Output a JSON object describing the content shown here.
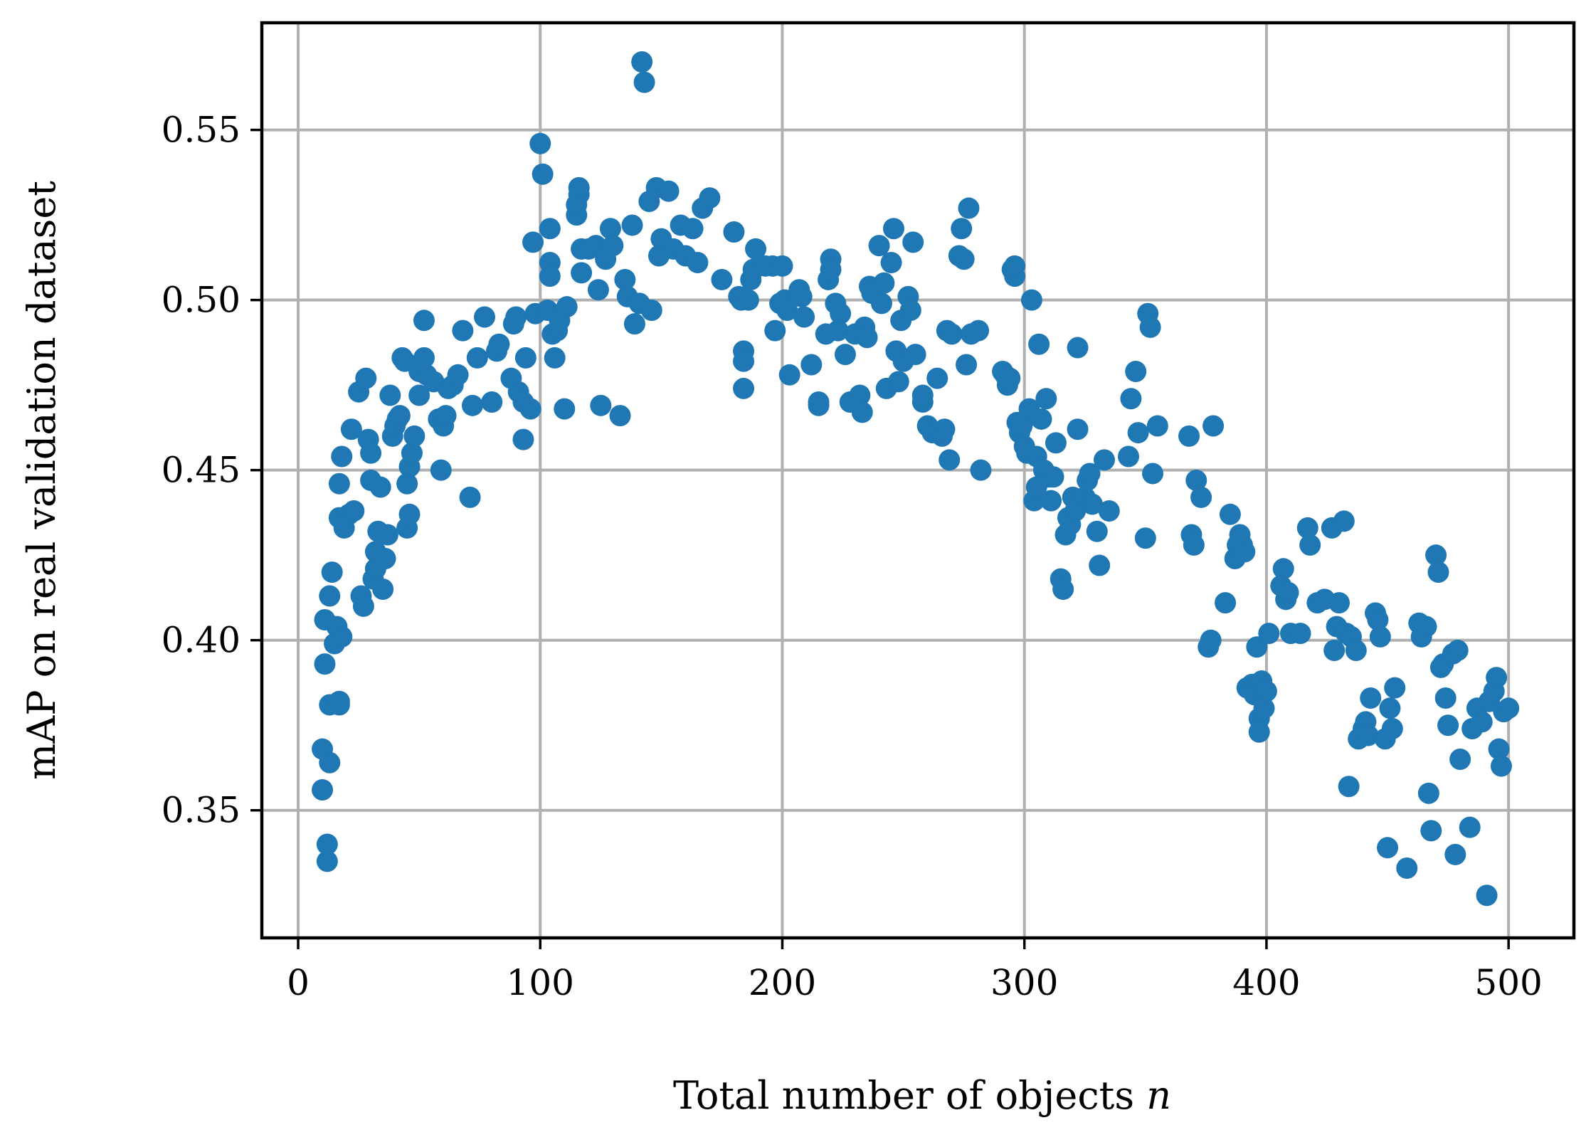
{
  "chart_data": {
    "type": "scatter",
    "title": "",
    "xlabel": "Total number of objects",
    "xlabel_var": "n",
    "ylabel": "mAP on real validation dataset",
    "xlim": [
      -15,
      527
    ],
    "ylim": [
      0.3125,
      0.5815
    ],
    "xticks": [
      0,
      100,
      200,
      300,
      400,
      500
    ],
    "xtick_labels": [
      "0",
      "100",
      "200",
      "300",
      "400",
      "500"
    ],
    "yticks": [
      0.35,
      0.4,
      0.45,
      0.5,
      0.55
    ],
    "ytick_labels": [
      "0.35",
      "0.40",
      "0.45",
      "0.50",
      "0.55"
    ],
    "grid": true,
    "color": "#1f77b4",
    "points": [
      [
        10,
        0.356
      ],
      [
        10,
        0.368
      ],
      [
        11,
        0.393
      ],
      [
        11,
        0.406
      ],
      [
        12,
        0.335
      ],
      [
        12,
        0.34
      ],
      [
        13,
        0.364
      ],
      [
        13,
        0.381
      ],
      [
        13,
        0.413
      ],
      [
        14,
        0.42
      ],
      [
        15,
        0.399
      ],
      [
        16,
        0.404
      ],
      [
        17,
        0.381
      ],
      [
        17,
        0.382
      ],
      [
        18,
        0.401
      ],
      [
        17,
        0.436
      ],
      [
        17,
        0.446
      ],
      [
        18,
        0.454
      ],
      [
        19,
        0.433
      ],
      [
        21,
        0.437
      ],
      [
        22,
        0.462
      ],
      [
        23,
        0.438
      ],
      [
        25,
        0.473
      ],
      [
        26,
        0.413
      ],
      [
        27,
        0.41
      ],
      [
        28,
        0.477
      ],
      [
        29,
        0.459
      ],
      [
        30,
        0.455
      ],
      [
        30,
        0.447
      ],
      [
        31,
        0.418
      ],
      [
        32,
        0.421
      ],
      [
        32,
        0.426
      ],
      [
        33,
        0.432
      ],
      [
        34,
        0.445
      ],
      [
        35,
        0.415
      ],
      [
        36,
        0.424
      ],
      [
        37,
        0.431
      ],
      [
        38,
        0.472
      ],
      [
        39,
        0.46
      ],
      [
        40,
        0.463
      ],
      [
        41,
        0.465
      ],
      [
        42,
        0.466
      ],
      [
        43,
        0.483
      ],
      [
        44,
        0.482
      ],
      [
        45,
        0.446
      ],
      [
        45,
        0.433
      ],
      [
        46,
        0.437
      ],
      [
        46,
        0.451
      ],
      [
        47,
        0.455
      ],
      [
        48,
        0.46
      ],
      [
        50,
        0.472
      ],
      [
        50,
        0.479
      ],
      [
        52,
        0.483
      ],
      [
        52,
        0.494
      ],
      [
        53,
        0.478
      ],
      [
        56,
        0.476
      ],
      [
        58,
        0.465
      ],
      [
        59,
        0.45
      ],
      [
        60,
        0.463
      ],
      [
        61,
        0.466
      ],
      [
        62,
        0.474
      ],
      [
        64,
        0.475
      ],
      [
        66,
        0.478
      ],
      [
        68,
        0.491
      ],
      [
        71,
        0.442
      ],
      [
        72,
        0.469
      ],
      [
        74,
        0.483
      ],
      [
        77,
        0.495
      ],
      [
        80,
        0.47
      ],
      [
        82,
        0.485
      ],
      [
        83,
        0.487
      ],
      [
        88,
        0.477
      ],
      [
        89,
        0.493
      ],
      [
        90,
        0.495
      ],
      [
        91,
        0.473
      ],
      [
        93,
        0.47
      ],
      [
        93,
        0.459
      ],
      [
        94,
        0.483
      ],
      [
        96,
        0.468
      ],
      [
        97,
        0.517
      ],
      [
        98,
        0.496
      ],
      [
        100,
        0.546
      ],
      [
        101,
        0.537
      ],
      [
        103,
        0.497
      ],
      [
        104,
        0.521
      ],
      [
        104,
        0.511
      ],
      [
        104,
        0.507
      ],
      [
        105,
        0.49
      ],
      [
        106,
        0.483
      ],
      [
        107,
        0.491
      ],
      [
        108,
        0.494
      ],
      [
        110,
        0.468
      ],
      [
        111,
        0.498
      ],
      [
        115,
        0.525
      ],
      [
        115,
        0.528
      ],
      [
        116,
        0.531
      ],
      [
        116,
        0.533
      ],
      [
        117,
        0.515
      ],
      [
        117,
        0.508
      ],
      [
        120,
        0.515
      ],
      [
        123,
        0.516
      ],
      [
        124,
        0.503
      ],
      [
        125,
        0.469
      ],
      [
        127,
        0.512
      ],
      [
        127,
        0.514
      ],
      [
        129,
        0.521
      ],
      [
        130,
        0.516
      ],
      [
        133,
        0.466
      ],
      [
        135,
        0.506
      ],
      [
        136,
        0.501
      ],
      [
        138,
        0.522
      ],
      [
        139,
        0.493
      ],
      [
        141,
        0.499
      ],
      [
        142,
        0.57
      ],
      [
        143,
        0.564
      ],
      [
        145,
        0.529
      ],
      [
        146,
        0.497
      ],
      [
        148,
        0.533
      ],
      [
        149,
        0.513
      ],
      [
        150,
        0.518
      ],
      [
        153,
        0.532
      ],
      [
        155,
        0.515
      ],
      [
        158,
        0.522
      ],
      [
        160,
        0.513
      ],
      [
        163,
        0.521
      ],
      [
        165,
        0.511
      ],
      [
        167,
        0.527
      ],
      [
        170,
        0.53
      ],
      [
        175,
        0.506
      ],
      [
        180,
        0.52
      ],
      [
        182,
        0.501
      ],
      [
        183,
        0.5
      ],
      [
        184,
        0.485
      ],
      [
        184,
        0.474
      ],
      [
        184,
        0.482
      ],
      [
        186,
        0.5
      ],
      [
        187,
        0.506
      ],
      [
        188,
        0.509
      ],
      [
        189,
        0.515
      ],
      [
        193,
        0.51
      ],
      [
        196,
        0.51
      ],
      [
        197,
        0.491
      ],
      [
        199,
        0.499
      ],
      [
        200,
        0.51
      ],
      [
        201,
        0.5
      ],
      [
        202,
        0.497
      ],
      [
        203,
        0.478
      ],
      [
        207,
        0.503
      ],
      [
        208,
        0.501
      ],
      [
        209,
        0.495
      ],
      [
        212,
        0.481
      ],
      [
        215,
        0.47
      ],
      [
        215,
        0.469
      ],
      [
        218,
        0.49
      ],
      [
        219,
        0.506
      ],
      [
        220,
        0.512
      ],
      [
        220,
        0.509
      ],
      [
        222,
        0.499
      ],
      [
        223,
        0.491
      ],
      [
        224,
        0.496
      ],
      [
        226,
        0.484
      ],
      [
        228,
        0.47
      ],
      [
        229,
        0.47
      ],
      [
        230,
        0.49
      ],
      [
        232,
        0.472
      ],
      [
        233,
        0.467
      ],
      [
        234,
        0.492
      ],
      [
        235,
        0.489
      ],
      [
        236,
        0.504
      ],
      [
        237,
        0.502
      ],
      [
        240,
        0.516
      ],
      [
        241,
        0.499
      ],
      [
        242,
        0.505
      ],
      [
        243,
        0.474
      ],
      [
        245,
        0.511
      ],
      [
        246,
        0.521
      ],
      [
        247,
        0.485
      ],
      [
        248,
        0.476
      ],
      [
        249,
        0.494
      ],
      [
        250,
        0.482
      ],
      [
        252,
        0.501
      ],
      [
        253,
        0.497
      ],
      [
        254,
        0.517
      ],
      [
        255,
        0.484
      ],
      [
        258,
        0.47
      ],
      [
        258,
        0.472
      ],
      [
        260,
        0.463
      ],
      [
        262,
        0.461
      ],
      [
        264,
        0.477
      ],
      [
        266,
        0.46
      ],
      [
        267,
        0.462
      ],
      [
        268,
        0.491
      ],
      [
        269,
        0.453
      ],
      [
        270,
        0.49
      ],
      [
        273,
        0.513
      ],
      [
        274,
        0.521
      ],
      [
        275,
        0.512
      ],
      [
        276,
        0.481
      ],
      [
        277,
        0.527
      ],
      [
        278,
        0.49
      ],
      [
        281,
        0.491
      ],
      [
        282,
        0.45
      ],
      [
        291,
        0.479
      ],
      [
        292,
        0.478
      ],
      [
        293,
        0.475
      ],
      [
        294,
        0.477
      ],
      [
        295,
        0.509
      ],
      [
        296,
        0.507
      ],
      [
        296,
        0.51
      ],
      [
        297,
        0.464
      ],
      [
        298,
        0.461
      ],
      [
        299,
        0.463
      ],
      [
        300,
        0.457
      ],
      [
        301,
        0.455
      ],
      [
        302,
        0.468
      ],
      [
        303,
        0.5
      ],
      [
        304,
        0.441
      ],
      [
        305,
        0.445
      ],
      [
        305,
        0.454
      ],
      [
        306,
        0.487
      ],
      [
        307,
        0.465
      ],
      [
        308,
        0.45
      ],
      [
        309,
        0.471
      ],
      [
        310,
        0.448
      ],
      [
        311,
        0.441
      ],
      [
        312,
        0.448
      ],
      [
        313,
        0.458
      ],
      [
        315,
        0.418
      ],
      [
        316,
        0.415
      ],
      [
        317,
        0.431
      ],
      [
        318,
        0.436
      ],
      [
        319,
        0.434
      ],
      [
        320,
        0.442
      ],
      [
        321,
        0.438
      ],
      [
        322,
        0.462
      ],
      [
        322,
        0.486
      ],
      [
        325,
        0.442
      ],
      [
        326,
        0.447
      ],
      [
        327,
        0.449
      ],
      [
        328,
        0.44
      ],
      [
        330,
        0.432
      ],
      [
        331,
        0.422
      ],
      [
        333,
        0.453
      ],
      [
        335,
        0.438
      ],
      [
        343,
        0.454
      ],
      [
        344,
        0.471
      ],
      [
        346,
        0.479
      ],
      [
        347,
        0.461
      ],
      [
        350,
        0.43
      ],
      [
        351,
        0.496
      ],
      [
        352,
        0.492
      ],
      [
        353,
        0.449
      ],
      [
        355,
        0.463
      ],
      [
        368,
        0.46
      ],
      [
        369,
        0.431
      ],
      [
        370,
        0.428
      ],
      [
        371,
        0.447
      ],
      [
        373,
        0.442
      ],
      [
        376,
        0.398
      ],
      [
        377,
        0.4
      ],
      [
        378,
        0.463
      ],
      [
        383,
        0.411
      ],
      [
        385,
        0.437
      ],
      [
        387,
        0.424
      ],
      [
        388,
        0.428
      ],
      [
        389,
        0.431
      ],
      [
        390,
        0.428
      ],
      [
        391,
        0.426
      ],
      [
        392,
        0.386
      ],
      [
        394,
        0.387
      ],
      [
        395,
        0.384
      ],
      [
        396,
        0.398
      ],
      [
        397,
        0.377
      ],
      [
        397,
        0.373
      ],
      [
        398,
        0.388
      ],
      [
        399,
        0.38
      ],
      [
        400,
        0.385
      ],
      [
        401,
        0.402
      ],
      [
        406,
        0.416
      ],
      [
        407,
        0.421
      ],
      [
        408,
        0.412
      ],
      [
        409,
        0.414
      ],
      [
        410,
        0.402
      ],
      [
        414,
        0.402
      ],
      [
        417,
        0.433
      ],
      [
        418,
        0.428
      ],
      [
        421,
        0.411
      ],
      [
        424,
        0.412
      ],
      [
        427,
        0.433
      ],
      [
        428,
        0.397
      ],
      [
        429,
        0.404
      ],
      [
        430,
        0.411
      ],
      [
        432,
        0.435
      ],
      [
        433,
        0.402
      ],
      [
        434,
        0.357
      ],
      [
        435,
        0.401
      ],
      [
        437,
        0.397
      ],
      [
        438,
        0.371
      ],
      [
        440,
        0.374
      ],
      [
        441,
        0.376
      ],
      [
        442,
        0.372
      ],
      [
        443,
        0.383
      ],
      [
        445,
        0.408
      ],
      [
        446,
        0.406
      ],
      [
        447,
        0.401
      ],
      [
        449,
        0.371
      ],
      [
        450,
        0.339
      ],
      [
        451,
        0.38
      ],
      [
        452,
        0.374
      ],
      [
        453,
        0.386
      ],
      [
        458,
        0.333
      ],
      [
        463,
        0.405
      ],
      [
        464,
        0.401
      ],
      [
        466,
        0.404
      ],
      [
        467,
        0.355
      ],
      [
        468,
        0.344
      ],
      [
        470,
        0.425
      ],
      [
        471,
        0.42
      ],
      [
        472,
        0.392
      ],
      [
        473,
        0.393
      ],
      [
        474,
        0.383
      ],
      [
        475,
        0.375
      ],
      [
        477,
        0.396
      ],
      [
        478,
        0.337
      ],
      [
        479,
        0.397
      ],
      [
        480,
        0.365
      ],
      [
        484,
        0.345
      ],
      [
        485,
        0.374
      ],
      [
        487,
        0.38
      ],
      [
        489,
        0.376
      ],
      [
        491,
        0.325
      ],
      [
        492,
        0.382
      ],
      [
        494,
        0.385
      ],
      [
        495,
        0.389
      ],
      [
        496,
        0.368
      ],
      [
        497,
        0.363
      ],
      [
        498,
        0.379
      ],
      [
        500,
        0.38
      ]
    ]
  }
}
